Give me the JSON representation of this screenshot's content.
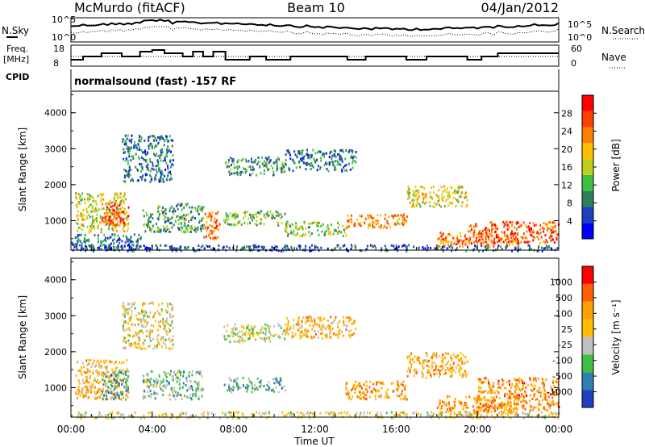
{
  "header": {
    "station": "McMurdo (fitACF)",
    "beam": "Beam 10",
    "date": "04/Jan/2012"
  },
  "noise_panel": {
    "left_label": "N.Sky",
    "right_label": "N.Search",
    "left_ticks": [
      "10^5",
      "10^0"
    ],
    "right_ticks": [
      "10^5",
      "10^0"
    ]
  },
  "freq_panel": {
    "left_label_1": "Freq.",
    "left_label_2": "[MHz]",
    "right_label": "Nave",
    "left_ticks": [
      "18",
      "8"
    ],
    "right_ticks": [
      "60",
      "0"
    ]
  },
  "cpid": {
    "label": "CPID",
    "text": "normalsound (fast) -157 RF"
  },
  "power_panel": {
    "ylabel": "Slant Range [km]",
    "yticks": [
      "4000",
      "3000",
      "2000",
      "1000"
    ],
    "colorbar_label": "Power [dB]",
    "colorbar_ticks": [
      "28",
      "24",
      "20",
      "16",
      "12",
      "8",
      "4"
    ],
    "colors": [
      "#0000ff",
      "#1f3fbf",
      "#2f7f5f",
      "#3fbf3f",
      "#bfcf1f",
      "#ffbf00",
      "#ff7f00",
      "#ff3f00",
      "#ff0000"
    ]
  },
  "velocity_panel": {
    "ylabel": "Slant Range [km]",
    "yticks": [
      "4000",
      "3000",
      "2000",
      "1000"
    ],
    "colorbar_label": "Velocity [m s⁻¹]",
    "colorbar_ticks": [
      "1000",
      "500",
      "100",
      "25",
      "-25",
      "-100",
      "-500",
      "-1000"
    ],
    "colors": [
      "#1e3fbf",
      "#2f7faf",
      "#3fbf3f",
      "#bfbfbf",
      "#ffbf00",
      "#ff9f00",
      "#ff5f00",
      "#ff0000"
    ]
  },
  "xaxis": {
    "label": "Time UT",
    "ticks": [
      "00:00",
      "04:00",
      "08:00",
      "12:00",
      "16:00",
      "20:00",
      "00:00"
    ]
  },
  "chart_data": [
    {
      "type": "heatmap",
      "title": "Power",
      "x_range_hours": [
        0,
        24
      ],
      "y_range_km": [
        180,
        4600
      ],
      "colorbar": [
        4,
        8,
        12,
        16,
        20,
        24,
        28
      ],
      "scatter_regions": [
        {
          "t": [
            0.2,
            2.8
          ],
          "r": [
            700,
            1800
          ],
          "level": 0.55
        },
        {
          "t": [
            0.0,
            3.5
          ],
          "r": [
            200,
            650
          ],
          "level": 0.25
        },
        {
          "t": [
            1.5,
            2.8
          ],
          "r": [
            900,
            1500
          ],
          "level": 0.85
        },
        {
          "t": [
            2.5,
            5.0
          ],
          "r": [
            2100,
            3400
          ],
          "level": 0.25
        },
        {
          "t": [
            3.5,
            6.5
          ],
          "r": [
            700,
            1500
          ],
          "level": 0.35
        },
        {
          "t": [
            6.5,
            7.3
          ],
          "r": [
            500,
            1300
          ],
          "level": 0.75
        },
        {
          "t": [
            7.5,
            10.5
          ],
          "r": [
            900,
            1300
          ],
          "level": 0.4
        },
        {
          "t": [
            7.5,
            10.5
          ],
          "r": [
            2300,
            2800
          ],
          "level": 0.3
        },
        {
          "t": [
            10.5,
            14.0
          ],
          "r": [
            2400,
            3000
          ],
          "level": 0.25
        },
        {
          "t": [
            10.5,
            13.5
          ],
          "r": [
            600,
            1000
          ],
          "level": 0.45
        },
        {
          "t": [
            13.5,
            16.5
          ],
          "r": [
            800,
            1200
          ],
          "level": 0.7
        },
        {
          "t": [
            16.5,
            19.5
          ],
          "r": [
            1400,
            2000
          ],
          "level": 0.55
        },
        {
          "t": [
            18.0,
            22.0
          ],
          "r": [
            300,
            700
          ],
          "level": 0.75
        },
        {
          "t": [
            19.5,
            24.0
          ],
          "r": [
            400,
            1000
          ],
          "level": 0.8
        },
        {
          "t": [
            0.0,
            24.0
          ],
          "r": [
            180,
            350
          ],
          "level": 0.2
        }
      ]
    },
    {
      "type": "heatmap",
      "title": "Velocity",
      "x_range_hours": [
        0,
        24
      ],
      "y_range_km": [
        180,
        4600
      ],
      "colorbar": [
        1000,
        500,
        100,
        25,
        -25,
        -100,
        -500,
        -1000
      ],
      "scatter_regions": [
        {
          "t": [
            0.2,
            2.8
          ],
          "r": [
            700,
            1800
          ],
          "level": 0.6
        },
        {
          "t": [
            1.5,
            2.8
          ],
          "r": [
            700,
            1500
          ],
          "level": 0.25
        },
        {
          "t": [
            2.5,
            5.0
          ],
          "r": [
            2100,
            3400
          ],
          "level": 0.5
        },
        {
          "t": [
            3.5,
            6.5
          ],
          "r": [
            700,
            1500
          ],
          "level": 0.35
        },
        {
          "t": [
            7.5,
            10.5
          ],
          "r": [
            900,
            1300
          ],
          "level": 0.3
        },
        {
          "t": [
            7.5,
            10.5
          ],
          "r": [
            2300,
            2800
          ],
          "level": 0.45
        },
        {
          "t": [
            10.5,
            14.0
          ],
          "r": [
            2400,
            3000
          ],
          "level": 0.6
        },
        {
          "t": [
            13.5,
            16.5
          ],
          "r": [
            700,
            1200
          ],
          "level": 0.68
        },
        {
          "t": [
            16.5,
            19.5
          ],
          "r": [
            1300,
            2000
          ],
          "level": 0.65
        },
        {
          "t": [
            18.0,
            22.0
          ],
          "r": [
            300,
            800
          ],
          "level": 0.7
        },
        {
          "t": [
            20.0,
            24.0
          ],
          "r": [
            400,
            1300
          ],
          "level": 0.72
        },
        {
          "t": [
            0.0,
            24.0
          ],
          "r": [
            180,
            350
          ],
          "level": 0.5
        }
      ]
    }
  ]
}
